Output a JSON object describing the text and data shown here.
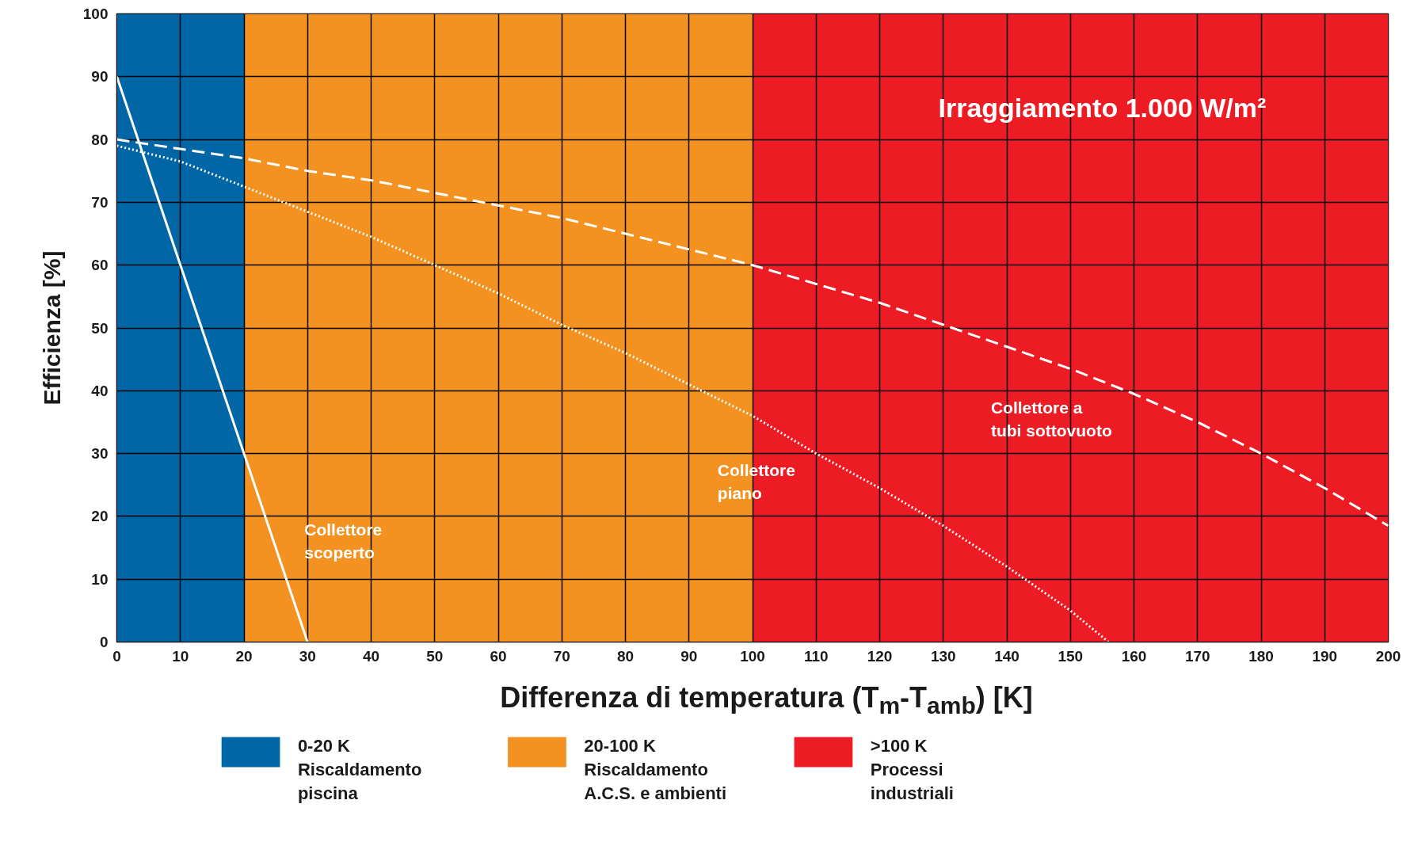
{
  "chart_data": {
    "type": "line",
    "xlabel": "Differenza di temperatura (T$_{m}$-T$_{amb}$) [K]",
    "ylabel": "Efficienza [%]",
    "xlim": [
      0,
      200
    ],
    "ylim": [
      0,
      100
    ],
    "xticks": [
      0,
      10,
      20,
      30,
      40,
      50,
      60,
      70,
      80,
      90,
      100,
      110,
      120,
      130,
      140,
      150,
      160,
      170,
      180,
      190,
      200
    ],
    "yticks": [
      0,
      10,
      20,
      30,
      40,
      50,
      60,
      70,
      80,
      90,
      100
    ],
    "grid": true,
    "series": [
      {
        "color": "#ffffff",
        "line_style": "solid",
        "x": [
          0,
          30
        ],
        "values": [
          90,
          0
        ]
      },
      {
        "color": "#ffffff",
        "line_style": "dotted",
        "x": [
          0,
          10,
          20,
          30,
          40,
          50,
          60,
          70,
          80,
          90,
          100,
          110,
          120,
          130,
          140,
          150,
          156
        ],
        "values": [
          79,
          76.5,
          72.5,
          68.5,
          64.5,
          60,
          55.5,
          50.5,
          46,
          41,
          36,
          30,
          24.5,
          18.5,
          12,
          5,
          0
        ]
      },
      {
        "color": "#ffffff",
        "line_style": "dashed",
        "x": [
          0,
          10,
          20,
          30,
          40,
          50,
          60,
          70,
          80,
          90,
          100,
          110,
          120,
          130,
          140,
          150,
          160,
          170,
          180,
          190,
          200
        ],
        "values": [
          80,
          78.5,
          77,
          75,
          73.5,
          71.5,
          69.5,
          67.5,
          65,
          62.5,
          60,
          57,
          54,
          50.5,
          47,
          43.5,
          39.5,
          35,
          30,
          24.5,
          18.5
        ]
      }
    ],
    "bands": [
      {
        "axis": "x",
        "from": 0,
        "to": 20,
        "label": "0-20 K\nRiscaldamento\npiscina",
        "color": "#0066a6"
      },
      {
        "axis": "x",
        "from": 20,
        "to": 100,
        "label": "20-100 K\nRiscaldamento\nA.C.S. e ambienti",
        "color": "#f39220"
      },
      {
        "axis": "x",
        "from": 100,
        "to": 200,
        "label": ">100 K\nProcessi\nindustriali",
        "color": "#ed1c24"
      }
    ],
    "annotations": [
      "Irraggiamento 1.000 W/m²",
      "Collettore\nscoperto",
      "Collettore\npiano",
      "Collettore a\ntubi sottovuoto"
    ],
    "legend": "bottom"
  }
}
